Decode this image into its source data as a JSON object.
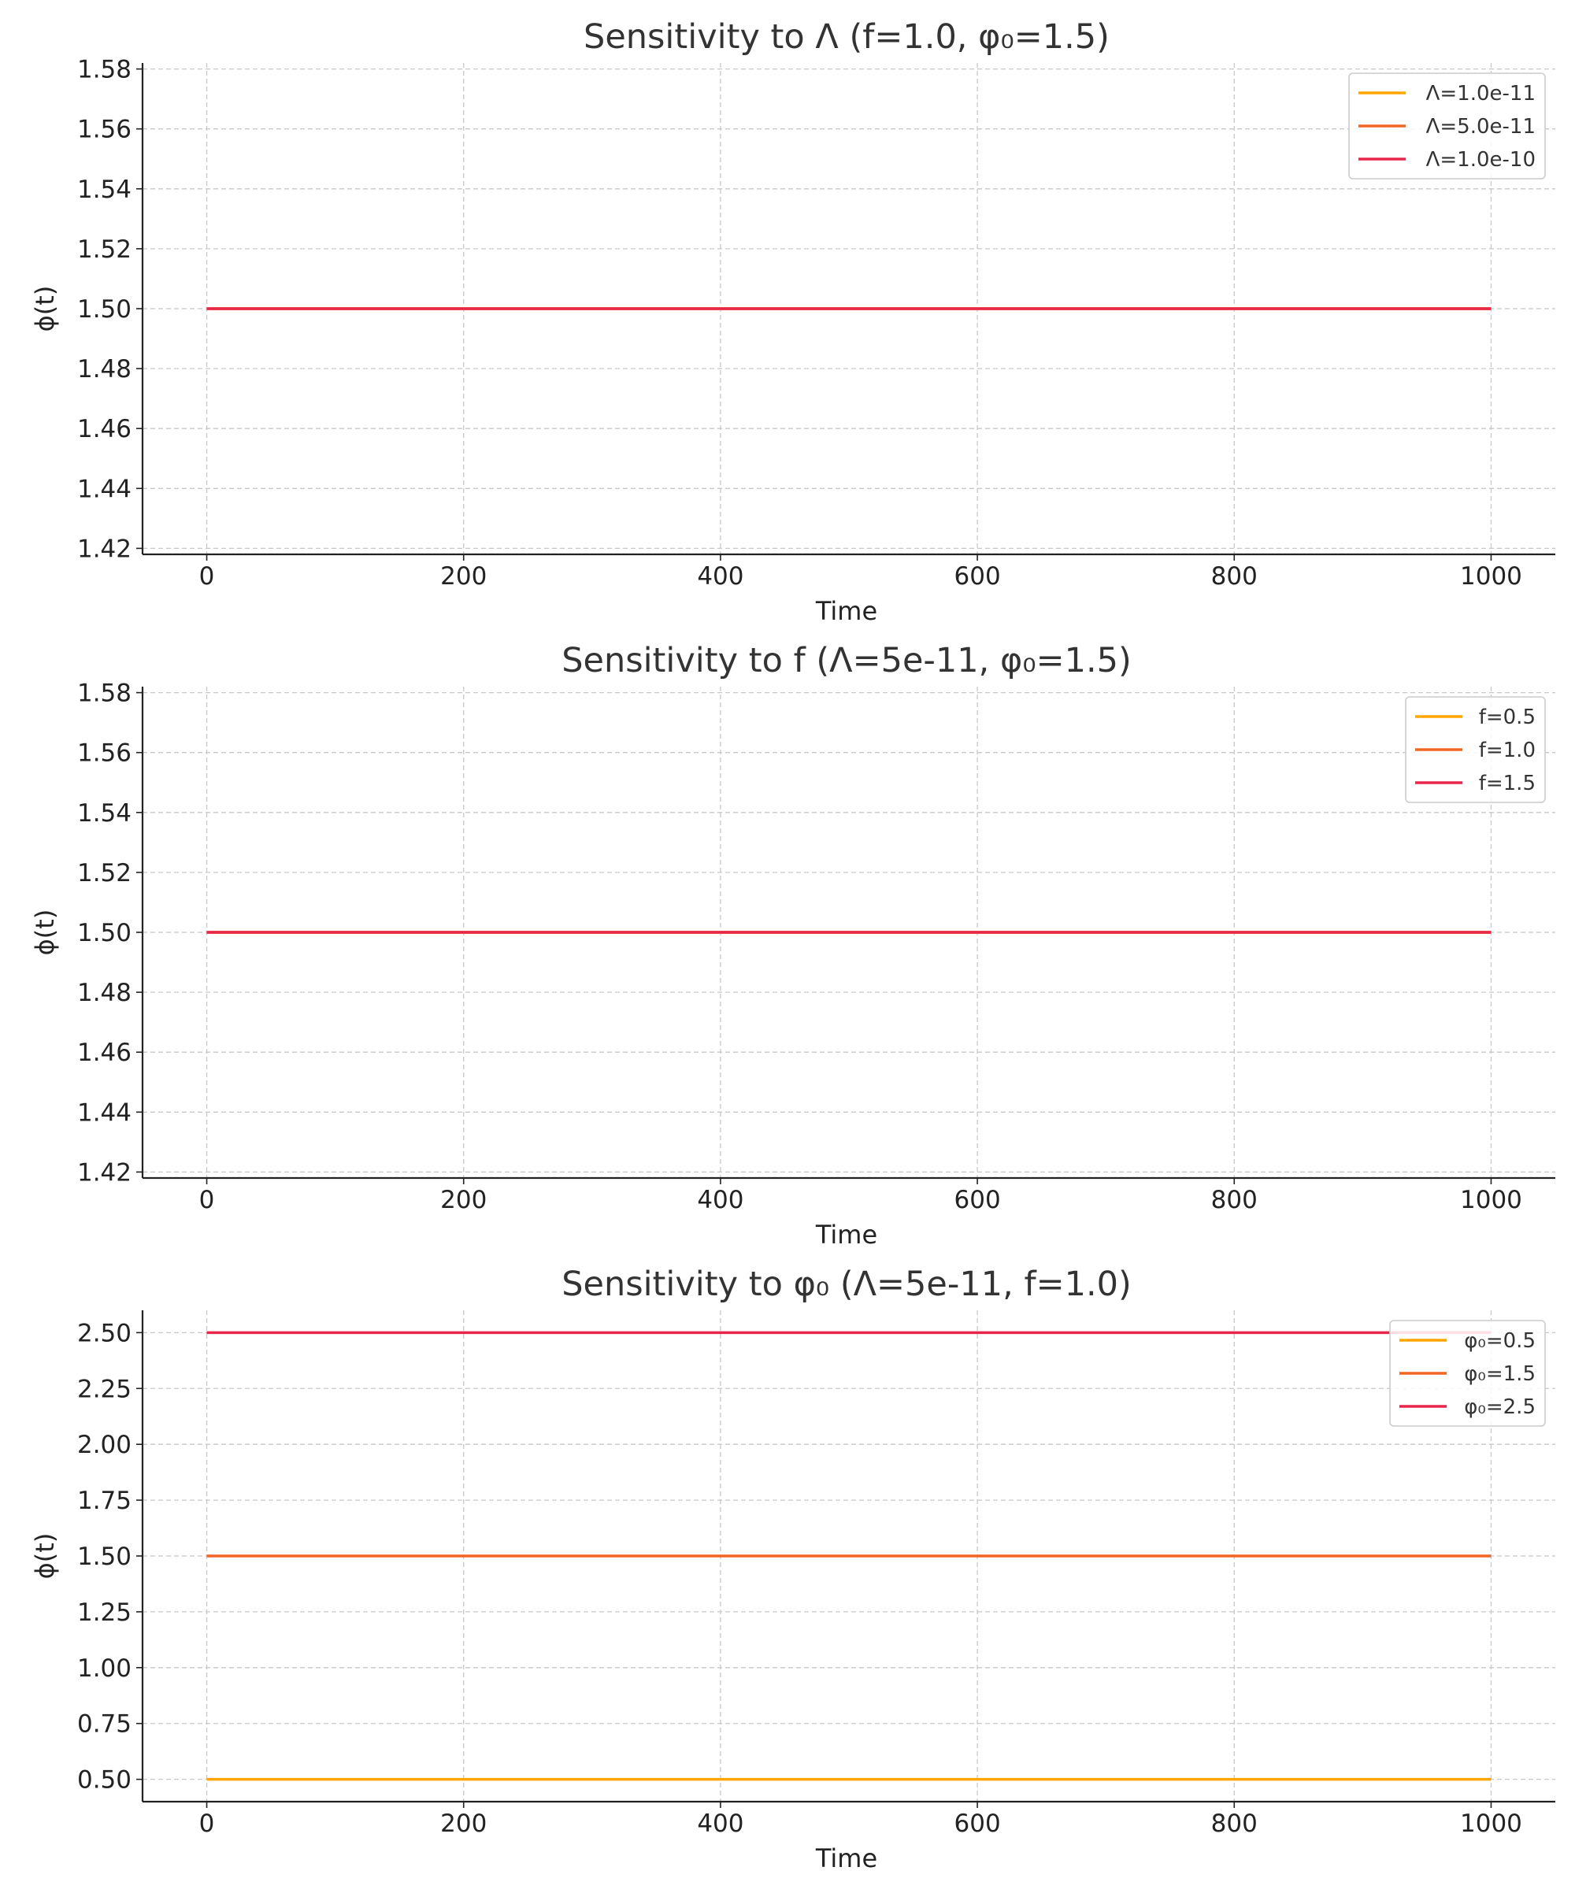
{
  "chart_data": [
    {
      "type": "line",
      "title": "Sensitivity to Λ (f=1.0, φ₀=1.5)",
      "xlabel": "Time",
      "ylabel": "ϕ(t)",
      "xlim": [
        -50,
        1050
      ],
      "ylim": [
        1.418,
        1.582
      ],
      "xticks": [
        0,
        200,
        400,
        600,
        800,
        1000
      ],
      "yticks": [
        1.42,
        1.44,
        1.46,
        1.48,
        1.5,
        1.52,
        1.54,
        1.56,
        1.58
      ],
      "ytick_labels": [
        "1.42",
        "1.44",
        "1.46",
        "1.48",
        "1.50",
        "1.52",
        "1.54",
        "1.56",
        "1.58"
      ],
      "grid": true,
      "legend_position": "top-right",
      "series": [
        {
          "name": "Λ=1.0e-11",
          "color": "#FFA500",
          "x": [
            0,
            1000
          ],
          "y": [
            1.5,
            1.5
          ]
        },
        {
          "name": "Λ=5.0e-11",
          "color": "#F26522",
          "x": [
            0,
            1000
          ],
          "y": [
            1.5,
            1.5
          ]
        },
        {
          "name": "Λ=1.0e-10",
          "color": "#E8254A",
          "x": [
            0,
            1000
          ],
          "y": [
            1.5,
            1.5
          ]
        }
      ]
    },
    {
      "type": "line",
      "title": "Sensitivity to f (Λ=5e-11, φ₀=1.5)",
      "xlabel": "Time",
      "ylabel": "ϕ(t)",
      "xlim": [
        -50,
        1050
      ],
      "ylim": [
        1.418,
        1.582
      ],
      "xticks": [
        0,
        200,
        400,
        600,
        800,
        1000
      ],
      "yticks": [
        1.42,
        1.44,
        1.46,
        1.48,
        1.5,
        1.52,
        1.54,
        1.56,
        1.58
      ],
      "ytick_labels": [
        "1.42",
        "1.44",
        "1.46",
        "1.48",
        "1.50",
        "1.52",
        "1.54",
        "1.56",
        "1.58"
      ],
      "grid": true,
      "legend_position": "top-right",
      "series": [
        {
          "name": "f=0.5",
          "color": "#FFA500",
          "x": [
            0,
            1000
          ],
          "y": [
            1.5,
            1.5
          ]
        },
        {
          "name": "f=1.0",
          "color": "#F26522",
          "x": [
            0,
            1000
          ],
          "y": [
            1.5,
            1.5
          ]
        },
        {
          "name": "f=1.5",
          "color": "#E8254A",
          "x": [
            0,
            1000
          ],
          "y": [
            1.5,
            1.5
          ]
        }
      ]
    },
    {
      "type": "line",
      "title": "Sensitivity to φ₀ (Λ=5e-11, f=1.0)",
      "xlabel": "Time",
      "ylabel": "ϕ(t)",
      "xlim": [
        -50,
        1050
      ],
      "ylim": [
        0.4,
        2.6
      ],
      "xticks": [
        0,
        200,
        400,
        600,
        800,
        1000
      ],
      "yticks": [
        0.5,
        0.75,
        1.0,
        1.25,
        1.5,
        1.75,
        2.0,
        2.25,
        2.5
      ],
      "ytick_labels": [
        "0.50",
        "0.75",
        "1.00",
        "1.25",
        "1.50",
        "1.75",
        "2.00",
        "2.25",
        "2.50"
      ],
      "grid": true,
      "legend_position": "top-right",
      "series": [
        {
          "name": "φ₀=0.5",
          "color": "#FFA500",
          "x": [
            0,
            1000
          ],
          "y": [
            0.5,
            0.5
          ]
        },
        {
          "name": "φ₀=1.5",
          "color": "#F26522",
          "x": [
            0,
            1000
          ],
          "y": [
            1.5,
            1.5
          ]
        },
        {
          "name": "φ₀=2.5",
          "color": "#E8254A",
          "x": [
            0,
            1000
          ],
          "y": [
            2.5,
            2.5
          ]
        }
      ]
    }
  ]
}
